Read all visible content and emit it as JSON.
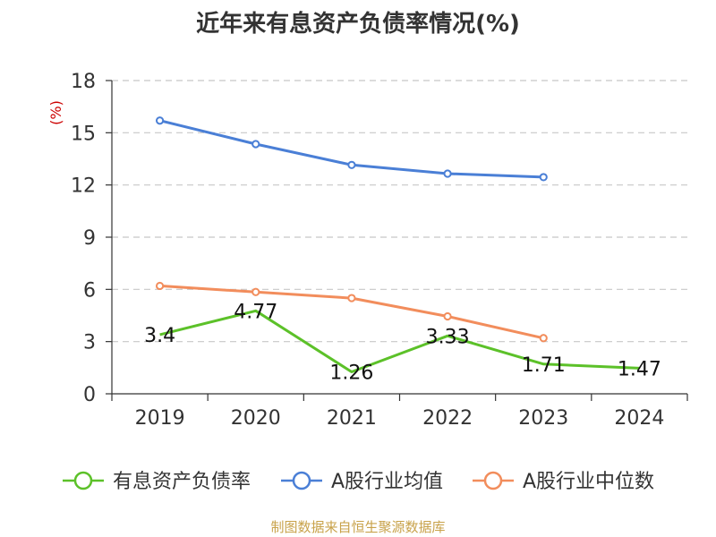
{
  "title": "近年来有息资产负债率情况(%)",
  "source": "制图数据来自恒生聚源数据库",
  "colors": {
    "source": "#c8a24a",
    "unit": "#cc0000",
    "grid": "#c8c8c8",
    "axis": "#333333"
  },
  "chart_data": {
    "type": "line",
    "title": "近年来有息资产负债率情况(%)",
    "y_unit_label": "(%)",
    "categories": [
      "2019",
      "2020",
      "2021",
      "2022",
      "2023",
      "2024"
    ],
    "ylim": [
      0,
      18
    ],
    "yticks": [
      0,
      3,
      6,
      9,
      12,
      15,
      18
    ],
    "grid": true,
    "legend_position": "bottom",
    "series": [
      {
        "name": "有息资产负债率",
        "color": "#5cc129",
        "values": [
          3.4,
          4.77,
          1.26,
          3.33,
          1.71,
          1.47
        ],
        "data_labels": [
          "3.4",
          "4.77",
          "1.26",
          "3.33",
          "1.71",
          "1.47"
        ],
        "show_labels": true,
        "show_markers": false
      },
      {
        "name": "A股行业均值",
        "color": "#4a7fd6",
        "values": [
          15.7,
          14.35,
          13.15,
          12.65,
          12.45,
          null
        ],
        "show_labels": false,
        "show_markers": true
      },
      {
        "name": "A股行业中位数",
        "color": "#f28d5c",
        "values": [
          6.2,
          5.85,
          5.5,
          4.45,
          3.2,
          null
        ],
        "show_labels": false,
        "show_markers": true
      }
    ]
  }
}
